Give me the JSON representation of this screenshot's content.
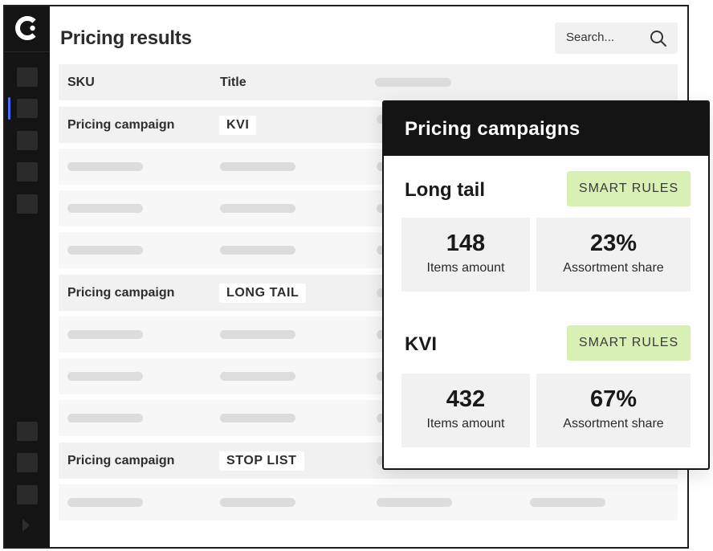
{
  "page": {
    "title": "Pricing results",
    "search_placeholder": "Search..."
  },
  "table": {
    "headers": {
      "sku": "SKU",
      "title": "Title"
    },
    "campaign_label": "Pricing campaign",
    "campaign_tags": [
      "KVI",
      "LONG TAIL",
      "STOP LIST"
    ]
  },
  "panel": {
    "title": "Pricing campaigns",
    "sections": [
      {
        "name": "Long tail",
        "button": "SMART RULES",
        "items_amount": "148",
        "items_label": "Items amount",
        "share": "23%",
        "share_label": "Assortment share"
      },
      {
        "name": "KVI",
        "button": "SMART RULES",
        "items_amount": "432",
        "items_label": "Items amount",
        "share": "67%",
        "share_label": "Assortment share"
      }
    ]
  },
  "icons": [
    "logo-icon",
    "search-icon",
    "expand-arrow-icon"
  ],
  "colors": {
    "sidebar": "#141414",
    "accent": "#4b6bff",
    "smart_rules_bg": "#d8f0b4",
    "panel_header": "#141414"
  }
}
